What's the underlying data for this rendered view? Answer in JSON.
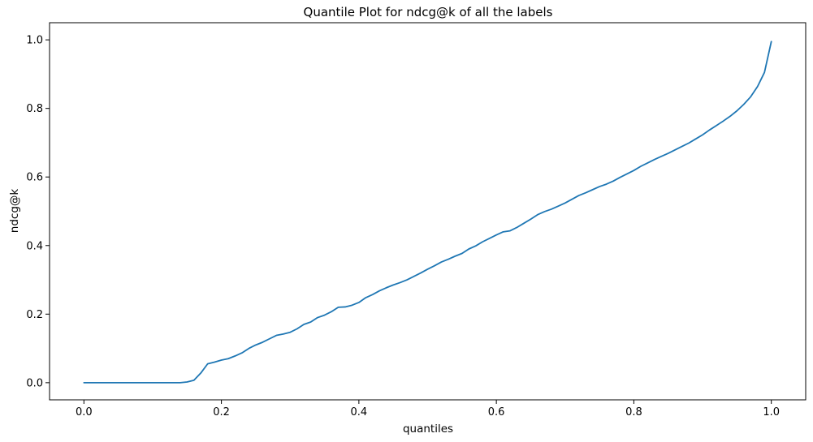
{
  "chart_data": {
    "type": "line",
    "title": "Quantile Plot for ndcg@k of all the labels",
    "xlabel": "quantiles",
    "ylabel": "ndcg@k",
    "xlim": [
      -0.05,
      1.05
    ],
    "ylim": [
      -0.05,
      1.05
    ],
    "xticks": [
      0.0,
      0.2,
      0.4,
      0.6,
      0.8,
      1.0
    ],
    "xtick_labels": [
      "0.0",
      "0.2",
      "0.4",
      "0.6",
      "0.8",
      "1.0"
    ],
    "yticks": [
      0.0,
      0.2,
      0.4,
      0.6,
      0.8,
      1.0
    ],
    "ytick_labels": [
      "0.0",
      "0.2",
      "0.4",
      "0.6",
      "0.8",
      "1.0"
    ],
    "grid": false,
    "series": [
      {
        "color": "#1f77b4",
        "x": [
          0.0,
          0.05,
          0.1,
          0.14,
          0.15,
          0.16,
          0.17,
          0.18,
          0.19,
          0.2,
          0.21,
          0.22,
          0.23,
          0.24,
          0.25,
          0.26,
          0.27,
          0.28,
          0.29,
          0.3,
          0.31,
          0.32,
          0.33,
          0.34,
          0.35,
          0.36,
          0.37,
          0.38,
          0.39,
          0.4,
          0.41,
          0.42,
          0.43,
          0.44,
          0.45,
          0.46,
          0.47,
          0.48,
          0.49,
          0.5,
          0.51,
          0.52,
          0.53,
          0.54,
          0.55,
          0.56,
          0.57,
          0.58,
          0.59,
          0.6,
          0.61,
          0.62,
          0.63,
          0.64,
          0.65,
          0.66,
          0.67,
          0.68,
          0.69,
          0.7,
          0.71,
          0.72,
          0.73,
          0.74,
          0.75,
          0.76,
          0.77,
          0.78,
          0.79,
          0.8,
          0.81,
          0.82,
          0.83,
          0.84,
          0.85,
          0.86,
          0.87,
          0.88,
          0.89,
          0.9,
          0.91,
          0.92,
          0.93,
          0.94,
          0.95,
          0.96,
          0.97,
          0.98,
          0.99,
          1.0
        ],
        "y": [
          0.0,
          0.0,
          0.0,
          0.0,
          0.002,
          0.007,
          0.028,
          0.055,
          0.06,
          0.066,
          0.07,
          0.078,
          0.087,
          0.1,
          0.11,
          0.118,
          0.128,
          0.138,
          0.142,
          0.147,
          0.157,
          0.17,
          0.177,
          0.19,
          0.197,
          0.207,
          0.22,
          0.221,
          0.226,
          0.234,
          0.248,
          0.257,
          0.268,
          0.277,
          0.285,
          0.292,
          0.3,
          0.31,
          0.32,
          0.331,
          0.341,
          0.352,
          0.36,
          0.369,
          0.377,
          0.39,
          0.399,
          0.411,
          0.421,
          0.431,
          0.44,
          0.443,
          0.453,
          0.465,
          0.477,
          0.49,
          0.499,
          0.506,
          0.515,
          0.524,
          0.535,
          0.546,
          0.554,
          0.563,
          0.572,
          0.579,
          0.588,
          0.599,
          0.609,
          0.619,
          0.631,
          0.641,
          0.651,
          0.66,
          0.669,
          0.679,
          0.689,
          0.699,
          0.711,
          0.723,
          0.737,
          0.75,
          0.763,
          0.777,
          0.793,
          0.812,
          0.834,
          0.864,
          0.905,
          0.995
        ]
      }
    ]
  }
}
